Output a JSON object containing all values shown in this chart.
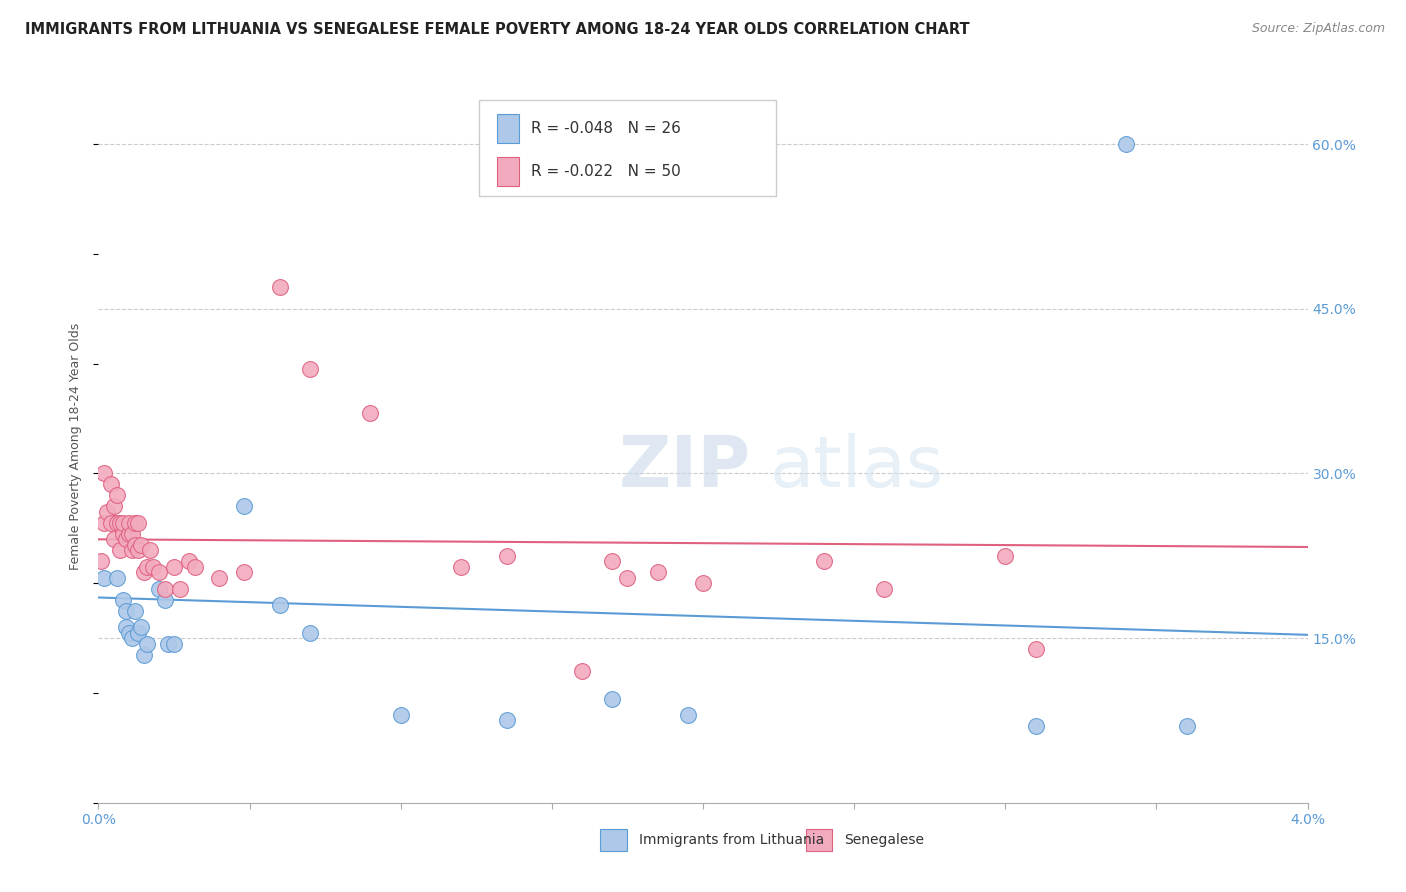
{
  "title": "IMMIGRANTS FROM LITHUANIA VS SENEGALESE FEMALE POVERTY AMONG 18-24 YEAR OLDS CORRELATION CHART",
  "source": "Source: ZipAtlas.com",
  "ylabel": "Female Poverty Among 18-24 Year Olds",
  "right_yticks": [
    "60.0%",
    "45.0%",
    "30.0%",
    "15.0%"
  ],
  "right_ytick_vals": [
    0.6,
    0.45,
    0.3,
    0.15
  ],
  "legend_blue_r": "R = -0.048",
  "legend_blue_n": "N = 26",
  "legend_pink_r": "R = -0.022",
  "legend_pink_n": "N = 50",
  "legend_label_blue": "Immigrants from Lithuania",
  "legend_label_pink": "Senegalese",
  "blue_color": "#adc8e8",
  "pink_color": "#f2abbe",
  "blue_line_color": "#5b9bd5",
  "pink_line_color": "#e06080",
  "background_color": "#ffffff",
  "title_fontsize": 10.5,
  "source_fontsize": 9,
  "blue_x": [
    0.0002,
    0.0006,
    0.0008,
    0.0009,
    0.0009,
    0.001,
    0.0011,
    0.0012,
    0.0013,
    0.0014,
    0.0015,
    0.0016,
    0.002,
    0.0022,
    0.0023,
    0.0025,
    0.0048,
    0.006,
    0.007,
    0.01,
    0.0135,
    0.017,
    0.0195,
    0.031,
    0.034,
    0.036
  ],
  "blue_y": [
    0.205,
    0.205,
    0.185,
    0.175,
    0.16,
    0.155,
    0.15,
    0.175,
    0.155,
    0.16,
    0.135,
    0.145,
    0.195,
    0.185,
    0.145,
    0.145,
    0.27,
    0.18,
    0.155,
    0.08,
    0.075,
    0.095,
    0.08,
    0.07,
    0.6,
    0.07
  ],
  "pink_x": [
    0.0001,
    0.0002,
    0.0002,
    0.0003,
    0.0004,
    0.0004,
    0.0005,
    0.0005,
    0.0006,
    0.0006,
    0.0007,
    0.0007,
    0.0008,
    0.0008,
    0.0009,
    0.001,
    0.001,
    0.0011,
    0.0011,
    0.0012,
    0.0012,
    0.0013,
    0.0013,
    0.0014,
    0.0015,
    0.0016,
    0.0017,
    0.0018,
    0.002,
    0.0022,
    0.0025,
    0.0027,
    0.003,
    0.0032,
    0.004,
    0.0048,
    0.006,
    0.007,
    0.009,
    0.012,
    0.0135,
    0.016,
    0.017,
    0.0175,
    0.0185,
    0.02,
    0.024,
    0.026,
    0.03,
    0.031
  ],
  "pink_y": [
    0.22,
    0.3,
    0.255,
    0.265,
    0.29,
    0.255,
    0.27,
    0.24,
    0.28,
    0.255,
    0.255,
    0.23,
    0.245,
    0.255,
    0.24,
    0.245,
    0.255,
    0.23,
    0.245,
    0.235,
    0.255,
    0.23,
    0.255,
    0.235,
    0.21,
    0.215,
    0.23,
    0.215,
    0.21,
    0.195,
    0.215,
    0.195,
    0.22,
    0.215,
    0.205,
    0.21,
    0.47,
    0.395,
    0.355,
    0.215,
    0.225,
    0.12,
    0.22,
    0.205,
    0.21,
    0.2,
    0.22,
    0.195,
    0.225,
    0.14
  ],
  "xmin": 0.0,
  "xmax": 0.04,
  "ymin": 0.0,
  "ymax": 0.65,
  "watermark_zip": "ZIP",
  "watermark_atlas": "atlas"
}
